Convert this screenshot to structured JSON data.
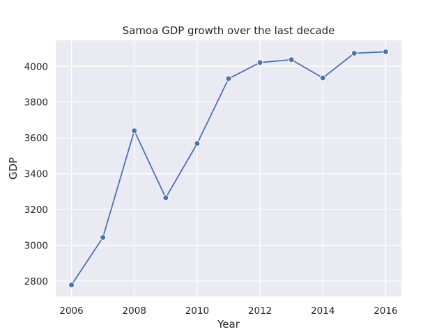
{
  "chart_data": {
    "type": "line",
    "title": "Samoa GDP growth over the last decade",
    "xlabel": "Year",
    "ylabel": "GDP",
    "x": [
      2006,
      2007,
      2008,
      2009,
      2010,
      2011,
      2012,
      2013,
      2014,
      2015,
      2016
    ],
    "series": [
      {
        "values": [
          2778,
          3043,
          3640,
          3265,
          3568,
          3931,
          4021,
          4037,
          3935,
          4073,
          4081
        ],
        "color": "#4c72b0"
      }
    ],
    "xticks": [
      "2006",
      "2008",
      "2010",
      "2012",
      "2014",
      "2016"
    ],
    "yticks": [
      "2800",
      "3000",
      "3200",
      "3400",
      "3600",
      "3800",
      "4000"
    ],
    "xlim": [
      2005.5,
      2016.5
    ],
    "ylim": [
      2714,
      4145
    ],
    "grid": true,
    "markers": true,
    "background": "#eaeaf2"
  }
}
